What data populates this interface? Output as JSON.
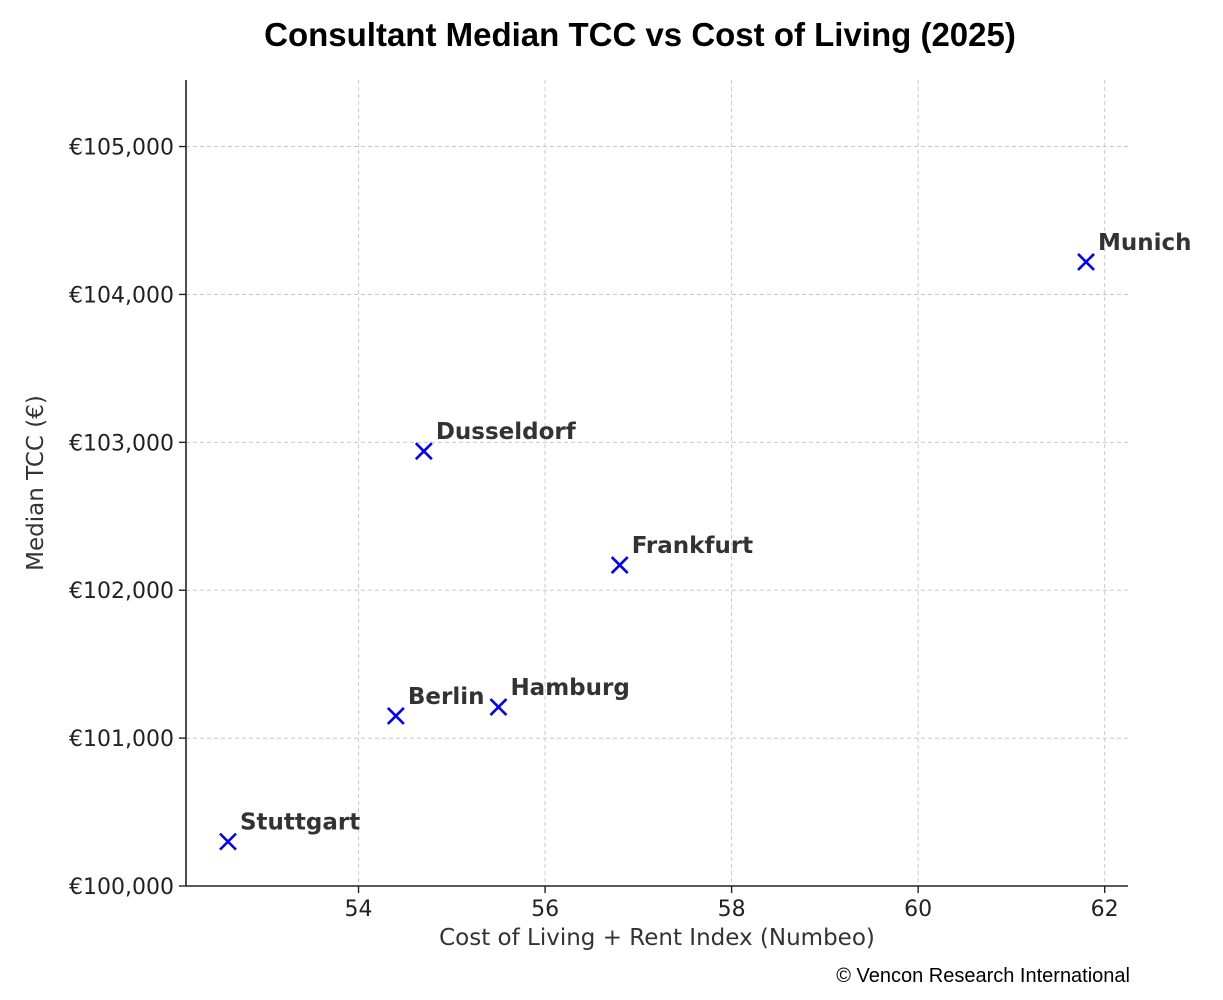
{
  "chart_data": {
    "type": "scatter",
    "title": "Consultant Median TCC vs Cost of Living (2025)",
    "xlabel": "Cost of Living + Rent Index (Numbeo)",
    "ylabel": "Median TCC (€)",
    "xlim": [
      52.15,
      62.25
    ],
    "ylim": [
      100000,
      105450
    ],
    "x_ticks": [
      54,
      56,
      58,
      60,
      62
    ],
    "x_tick_labels": [
      "54",
      "56",
      "58",
      "60",
      "62"
    ],
    "y_ticks": [
      100000,
      101000,
      102000,
      103000,
      104000,
      105000
    ],
    "y_tick_labels": [
      "€100,000",
      "€101,000",
      "€102,000",
      "€103,000",
      "€104,000",
      "€105,000"
    ],
    "grid": true,
    "marker": "x",
    "marker_color": "#0000ff",
    "points": [
      {
        "label": "Munich",
        "x": 61.8,
        "y": 104220
      },
      {
        "label": "Dusseldorf",
        "x": 54.7,
        "y": 102940
      },
      {
        "label": "Frankfurt",
        "x": 56.8,
        "y": 102170
      },
      {
        "label": "Berlin",
        "x": 54.4,
        "y": 101150
      },
      {
        "label": "Hamburg",
        "x": 55.5,
        "y": 101210
      },
      {
        "label": "Stuttgart",
        "x": 52.6,
        "y": 100300
      }
    ]
  },
  "footer": {
    "copyright": "© Vencon Research International"
  }
}
